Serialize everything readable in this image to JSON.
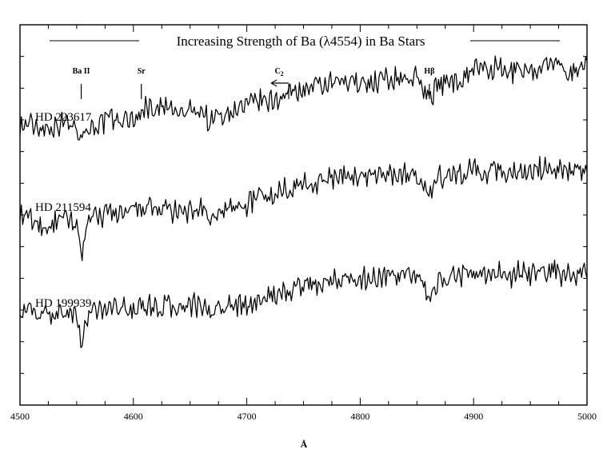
{
  "chart_data": {
    "type": "line",
    "title": "Increasing Strength of Ba (λ4554) in Ba Stars",
    "xlabel": "Å",
    "ylabel": "",
    "xlim": [
      4500,
      5000
    ],
    "xticks": [
      4500,
      4600,
      4700,
      4800,
      4900,
      5000
    ],
    "grid": false,
    "series": [
      {
        "name": "HD 223617",
        "x": [
          4500,
          4510,
          4520,
          4530,
          4540,
          4550,
          4554,
          4560,
          4570,
          4580,
          4590,
          4600,
          4607,
          4610,
          4620,
          4630,
          4640,
          4650,
          4660,
          4668,
          4670,
          4680,
          4690,
          4700,
          4710,
          4720,
          4730,
          4737,
          4740,
          4750,
          4760,
          4770,
          4780,
          4790,
          4800,
          4810,
          4820,
          4830,
          4840,
          4850,
          4861,
          4870,
          4880,
          4890,
          4900,
          4910,
          4920,
          4930,
          4940,
          4950,
          4960,
          4970,
          4980,
          4990,
          5000
        ],
        "y": [
          0.5,
          0.52,
          0.48,
          0.5,
          0.55,
          0.5,
          0.38,
          0.48,
          0.52,
          0.58,
          0.55,
          0.6,
          0.62,
          0.75,
          0.7,
          0.72,
          0.62,
          0.68,
          0.7,
          0.52,
          0.6,
          0.65,
          0.7,
          0.72,
          0.8,
          0.78,
          0.85,
          0.88,
          0.92,
          0.93,
          0.95,
          0.98,
          1.0,
          1.02,
          1.04,
          1.0,
          1.06,
          1.05,
          1.08,
          1.06,
          0.85,
          1.0,
          1.04,
          1.06,
          1.22,
          1.15,
          1.18,
          1.12,
          1.2,
          1.15,
          1.2,
          1.25,
          1.15,
          1.18,
          1.22
        ]
      },
      {
        "name": "HD 211594",
        "x": [
          4500,
          4510,
          4520,
          4530,
          4540,
          4550,
          4554,
          4560,
          4570,
          4580,
          4590,
          4600,
          4607,
          4610,
          4620,
          4630,
          4640,
          4650,
          4660,
          4668,
          4670,
          4680,
          4690,
          4700,
          4710,
          4720,
          4730,
          4737,
          4740,
          4750,
          4760,
          4770,
          4780,
          4790,
          4800,
          4810,
          4820,
          4830,
          4840,
          4850,
          4861,
          4870,
          4880,
          4890,
          4900,
          4910,
          4920,
          4930,
          4940,
          4950,
          4960,
          4970,
          4980,
          4990,
          5000
        ],
        "y": [
          0.5,
          0.45,
          0.35,
          0.4,
          0.45,
          0.4,
          0.05,
          0.42,
          0.48,
          0.55,
          0.5,
          0.55,
          0.56,
          0.6,
          0.55,
          0.58,
          0.5,
          0.55,
          0.58,
          0.38,
          0.5,
          0.55,
          0.6,
          0.62,
          0.75,
          0.72,
          0.8,
          0.83,
          0.86,
          0.88,
          0.9,
          0.92,
          0.95,
          0.96,
          0.98,
          0.95,
          1.0,
          0.98,
          0.99,
          0.98,
          0.72,
          0.95,
          0.98,
          1.0,
          1.06,
          1.02,
          1.05,
          1.0,
          1.04,
          1.02,
          1.06,
          1.08,
          1.0,
          1.04,
          1.06
        ]
      },
      {
        "name": "HD 199939",
        "x": [
          4500,
          4510,
          4520,
          4530,
          4540,
          4550,
          4554,
          4560,
          4570,
          4580,
          4590,
          4600,
          4607,
          4610,
          4620,
          4630,
          4640,
          4650,
          4660,
          4668,
          4670,
          4680,
          4690,
          4700,
          4710,
          4720,
          4730,
          4737,
          4740,
          4750,
          4760,
          4770,
          4780,
          4790,
          4800,
          4810,
          4820,
          4830,
          4840,
          4850,
          4861,
          4870,
          4880,
          4890,
          4900,
          4910,
          4920,
          4930,
          4940,
          4950,
          4960,
          4970,
          4980,
          4990,
          5000
        ],
        "y": [
          0.5,
          0.48,
          0.42,
          0.45,
          0.48,
          0.44,
          0.0,
          0.45,
          0.5,
          0.55,
          0.5,
          0.52,
          0.5,
          0.55,
          0.52,
          0.55,
          0.5,
          0.54,
          0.55,
          0.4,
          0.5,
          0.52,
          0.55,
          0.56,
          0.62,
          0.65,
          0.7,
          0.72,
          0.75,
          0.78,
          0.8,
          0.82,
          0.85,
          0.86,
          0.88,
          0.85,
          0.9,
          0.88,
          0.9,
          0.88,
          0.65,
          0.85,
          0.88,
          0.9,
          0.96,
          0.92,
          0.95,
          0.88,
          0.94,
          0.9,
          0.95,
          0.98,
          0.9,
          0.94,
          0.96
        ]
      }
    ],
    "annotations": [
      {
        "label": "Ba II",
        "x": 4554
      },
      {
        "label": "Sr",
        "x": 4607
      },
      {
        "label": "C",
        "sub": "2",
        "x": 4737,
        "arrow": "left"
      },
      {
        "label": "Hβ",
        "x": 4861
      }
    ]
  }
}
